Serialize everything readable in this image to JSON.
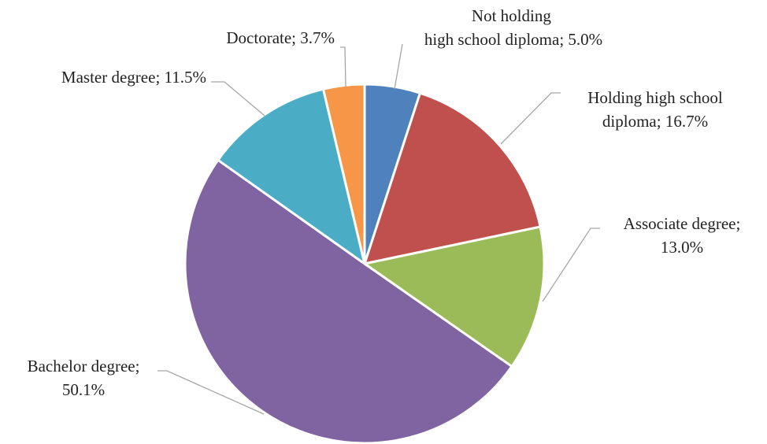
{
  "chart_data": {
    "type": "pie",
    "values": [
      5.0,
      16.7,
      13.0,
      50.1,
      11.5,
      3.7
    ],
    "value_labels": [
      "Not holding  high school diploma; 5.0%",
      "Holding high school diploma; 16.7%",
      "Associate degree; 13.0%",
      "Bachelor degree; 50.1%",
      "Master degree; 11.5%",
      "Doctorate; 3.7%"
    ],
    "colors": [
      "#4f81bd",
      "#c0504d",
      "#9bbb59",
      "#8064a2",
      "#4bacc6",
      "#f79646"
    ]
  }
}
